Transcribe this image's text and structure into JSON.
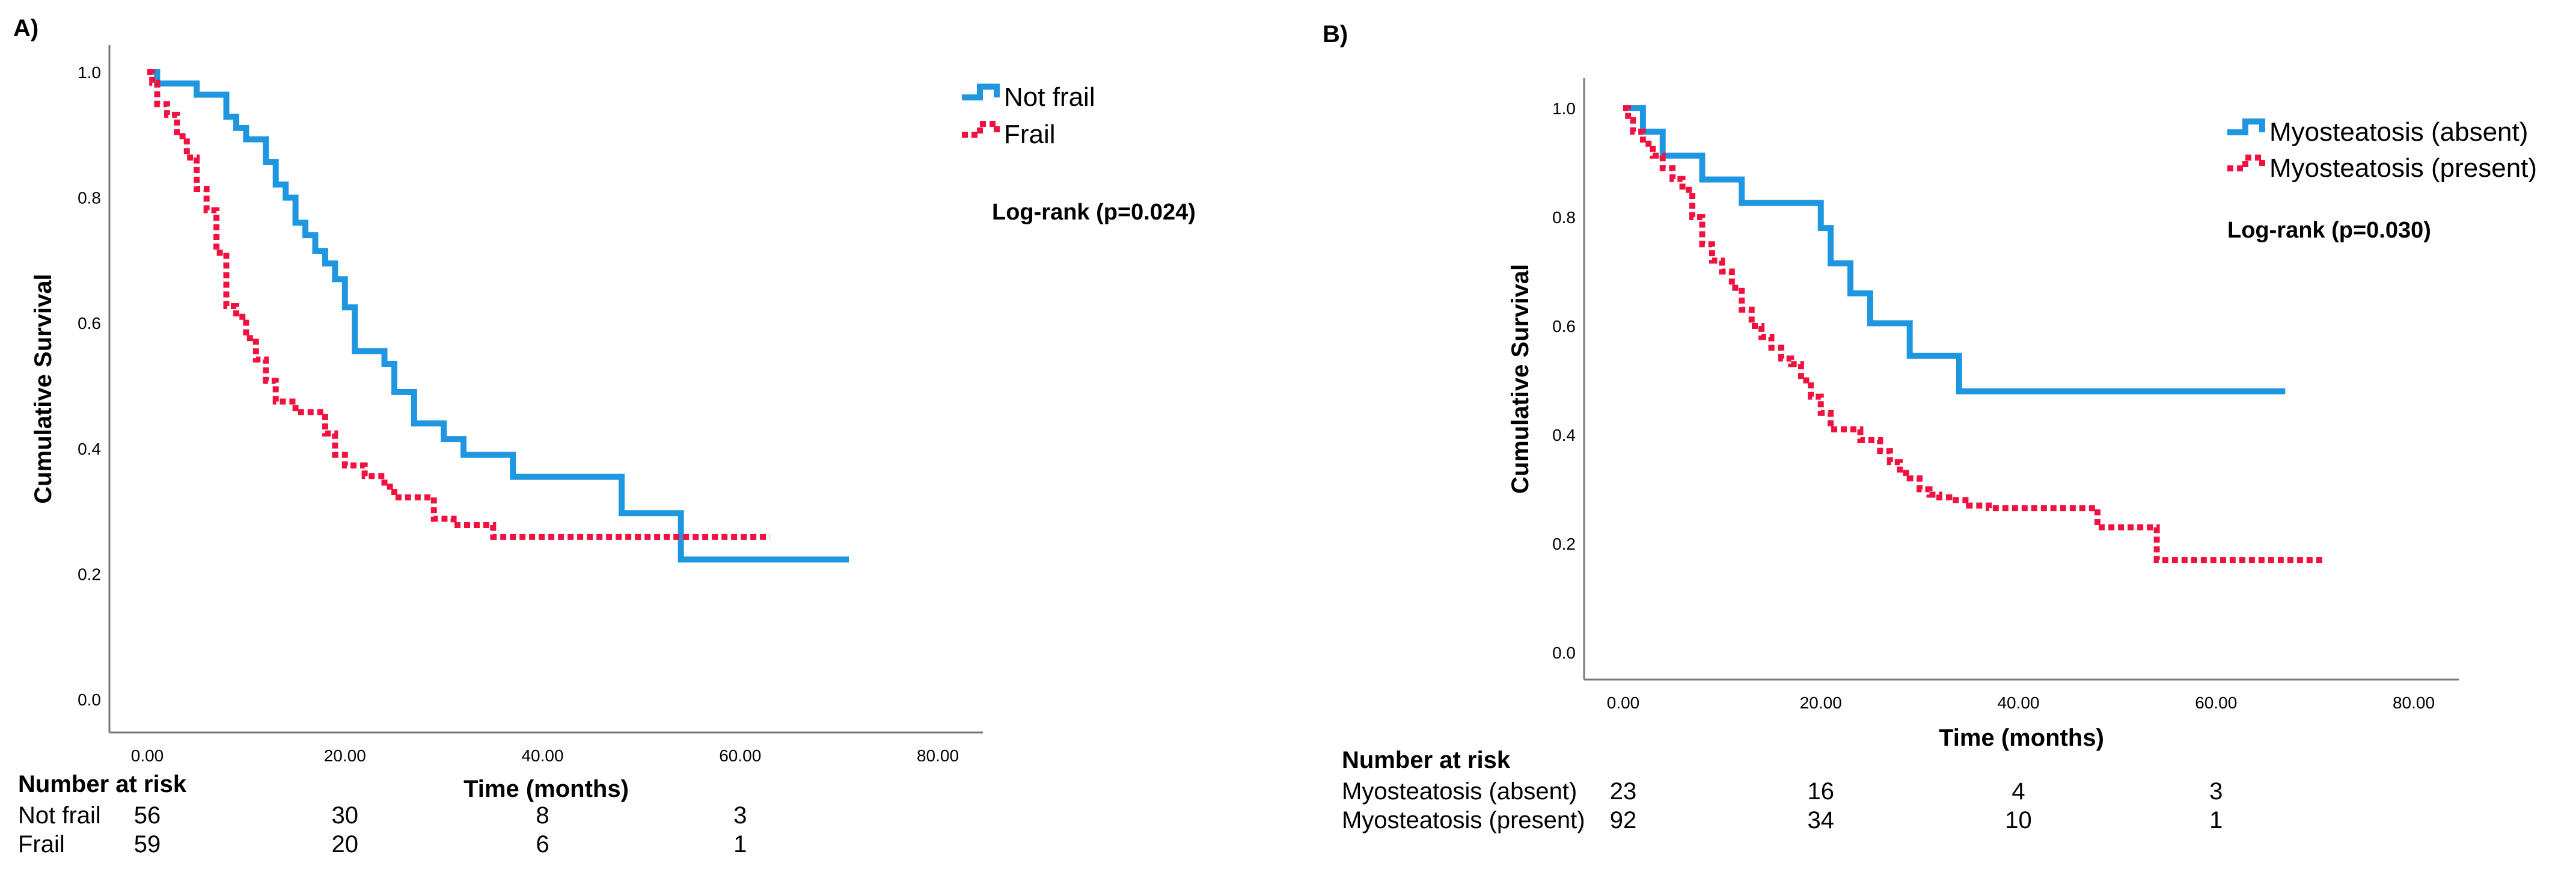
{
  "chart_data": [
    {
      "panel_label": "A)",
      "type": "line",
      "xlabel": "Time (months)",
      "ylabel": "Cumulative Survival",
      "xlim": [
        0,
        80
      ],
      "ylim": [
        0,
        1
      ],
      "xticks": [
        0,
        20,
        40,
        60,
        80
      ],
      "xtick_labels": [
        "0.00",
        "20.00",
        "40.00",
        "60.00",
        "80.00"
      ],
      "yticks": [
        0,
        0.2,
        0.4,
        0.6,
        0.8,
        1.0
      ],
      "ytick_labels": [
        "0.0",
        "0.2",
        "0.4",
        "0.6",
        "0.8",
        "1.0"
      ],
      "legend_position": "top-right, outside plot",
      "annotation": "Log-rank (p=0.024)",
      "series": [
        {
          "name": "Not frail",
          "color": "#1f97e0",
          "style": "solid",
          "x": [
            0,
            1.0,
            5.0,
            8.0,
            9.0,
            10.0,
            12.0,
            13.0,
            14.0,
            15.0,
            16.0,
            17.0,
            18.0,
            19.0,
            20.0,
            21.0,
            24.0,
            25.0,
            27.0,
            30.0,
            32.0,
            37.0,
            48.0,
            54.0,
            71.0
          ],
          "y": [
            1.0,
            0.982,
            0.964,
            0.929,
            0.911,
            0.893,
            0.857,
            0.821,
            0.8,
            0.76,
            0.74,
            0.715,
            0.695,
            0.67,
            0.625,
            0.555,
            0.535,
            0.49,
            0.44,
            0.415,
            0.39,
            0.355,
            0.297,
            0.223,
            0.223
          ]
        },
        {
          "name": "Frail",
          "color": "#f0113f",
          "style": "dotted",
          "x": [
            0,
            0.5,
            1.0,
            2.0,
            3.0,
            4.0,
            5.0,
            6.0,
            7.0,
            8.0,
            9.0,
            10.0,
            11.0,
            12.0,
            13.0,
            15.0,
            18.0,
            19.0,
            20.0,
            22.0,
            24.0,
            25.0,
            29.0,
            31.0,
            35.0,
            63.0
          ],
          "y": [
            1.0,
            0.983,
            0.949,
            0.932,
            0.898,
            0.864,
            0.814,
            0.78,
            0.712,
            0.627,
            0.61,
            0.576,
            0.542,
            0.508,
            0.475,
            0.458,
            0.424,
            0.39,
            0.373,
            0.356,
            0.339,
            0.322,
            0.288,
            0.278,
            0.259,
            0.259
          ]
        }
      ],
      "risk_table": {
        "title": "Number at risk",
        "times": [
          0,
          20,
          40,
          60
        ],
        "rows": [
          {
            "label": "Not frail",
            "values": [
              "56",
              "30",
              "8",
              "3"
            ]
          },
          {
            "label": "Frail",
            "values": [
              "59",
              "20",
              "6",
              "1"
            ]
          }
        ]
      }
    },
    {
      "panel_label": "B)",
      "type": "line",
      "xlabel": "Time (months)",
      "ylabel": "Cumulative Survival",
      "xlim": [
        0,
        80
      ],
      "ylim": [
        0,
        1
      ],
      "xticks": [
        0,
        20,
        40,
        60,
        80
      ],
      "xtick_labels": [
        "0.00",
        "20.00",
        "40.00",
        "60.00",
        "80.00"
      ],
      "yticks": [
        0,
        0.2,
        0.4,
        0.6,
        0.8,
        1.0
      ],
      "ytick_labels": [
        "0.0",
        "0.2",
        "0.4",
        "0.6",
        "0.8",
        "1.0"
      ],
      "legend_position": "top-right, inside plot",
      "annotation": "Log-rank (p=0.030)",
      "series": [
        {
          "name": "Myosteatosis (absent)",
          "color": "#1f97e0",
          "style": "solid",
          "x": [
            0,
            2.0,
            4.0,
            8.0,
            12.0,
            20.0,
            21.0,
            23.0,
            25.0,
            29.0,
            34.0,
            67.0
          ],
          "y": [
            1.0,
            0.957,
            0.913,
            0.869,
            0.826,
            0.78,
            0.715,
            0.66,
            0.605,
            0.545,
            0.48,
            0.48
          ]
        },
        {
          "name": "Myosteatosis (present)",
          "color": "#f0113f",
          "style": "dotted",
          "x": [
            0,
            0.5,
            1.0,
            2.0,
            3.0,
            4.0,
            5.0,
            6.0,
            7.0,
            8.0,
            9.0,
            10.0,
            11.0,
            12.0,
            13.0,
            14.0,
            15.0,
            16.0,
            17.0,
            18.0,
            19.0,
            20.0,
            21.0,
            24.0,
            26.0,
            27.0,
            28.0,
            29.0,
            30.0,
            31.0,
            32.0,
            33.0,
            35.0,
            37.0,
            48.0,
            54.0,
            71.0
          ],
          "y": [
            1.0,
            0.978,
            0.957,
            0.935,
            0.913,
            0.89,
            0.87,
            0.85,
            0.8,
            0.75,
            0.72,
            0.7,
            0.67,
            0.63,
            0.6,
            0.58,
            0.56,
            0.54,
            0.53,
            0.5,
            0.47,
            0.44,
            0.41,
            0.39,
            0.37,
            0.35,
            0.33,
            0.32,
            0.3,
            0.29,
            0.285,
            0.28,
            0.27,
            0.265,
            0.23,
            0.17,
            0.17
          ]
        }
      ],
      "risk_table": {
        "title": "Number at risk",
        "times": [
          0,
          20,
          40,
          60
        ],
        "rows": [
          {
            "label": "Myosteatosis (absent)",
            "values": [
              "23",
              "16",
              "4",
              "3"
            ]
          },
          {
            "label": "Myosteatosis (present)",
            "values": [
              "92",
              "34",
              "10",
              "1"
            ]
          }
        ]
      }
    }
  ]
}
